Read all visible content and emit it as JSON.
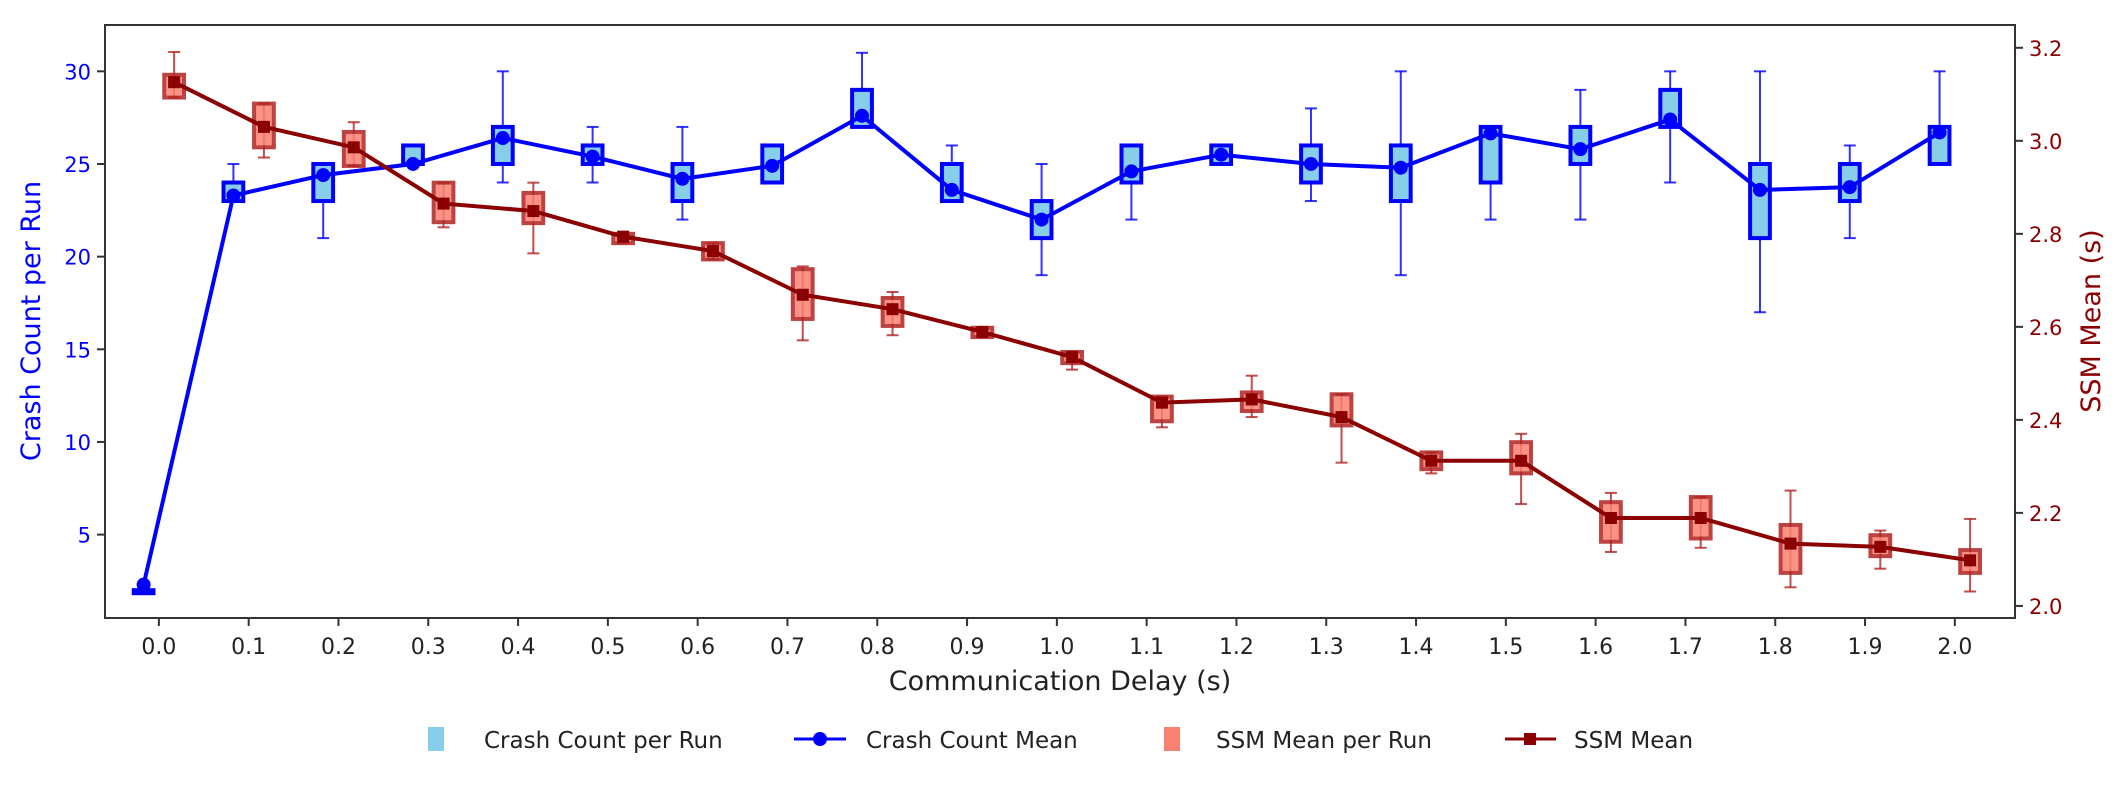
{
  "chart_data": {
    "type": "box+line (dual axis)",
    "xlabel": "Communication Delay (s)",
    "ylabel_left": "Crash Count per Run",
    "ylabel_right": "SSM Mean (s)",
    "x": [
      0.0,
      0.1,
      0.2,
      0.3,
      0.4,
      0.5,
      0.6,
      0.7,
      0.8,
      0.9,
      1.0,
      1.1,
      1.2,
      1.3,
      1.4,
      1.5,
      1.6,
      1.7,
      1.8,
      1.9,
      2.0
    ],
    "x_tick_labels": [
      "0.0",
      "0.1",
      "0.2",
      "0.3",
      "0.4",
      "0.5",
      "0.6",
      "0.7",
      "0.8",
      "0.9",
      "1.0",
      "1.1",
      "1.2",
      "1.3",
      "1.4",
      "1.5",
      "1.6",
      "1.7",
      "1.8",
      "1.9",
      "2.0"
    ],
    "xlim": [
      -0.06,
      2.067
    ],
    "left_axis": {
      "ylim": [
        0.5,
        32.5
      ],
      "ticks": [
        5,
        10,
        15,
        20,
        25,
        30
      ],
      "color": "#0000ff"
    },
    "right_axis": {
      "ylim": [
        1.974,
        3.249
      ],
      "ticks": [
        "2.0",
        "2.2",
        "2.4",
        "2.6",
        "2.8",
        "3.0",
        "3.2"
      ],
      "color": "#8b0000"
    },
    "grid": false,
    "legend_placement": "bottom-center",
    "series": [
      {
        "name": "Crash Count per Run",
        "kind": "box",
        "axis": "left",
        "fill": "#87ceeb",
        "edge": "#0000ff",
        "q1": [
          2,
          23,
          23,
          25,
          25,
          25,
          23,
          24,
          27,
          23,
          21,
          24,
          25,
          24,
          23,
          24,
          25,
          27,
          21,
          23,
          25
        ],
        "q3": [
          2,
          24,
          25,
          26,
          27,
          26,
          25,
          26,
          29,
          25,
          23,
          26,
          26,
          26,
          26,
          27,
          27,
          29,
          25,
          25,
          27
        ],
        "low": [
          2,
          23,
          21,
          25,
          24,
          24,
          22,
          24,
          27,
          23,
          19,
          22,
          25,
          23,
          19,
          22,
          22,
          24,
          17,
          21,
          25
        ],
        "high": [
          2,
          25,
          25,
          26,
          30,
          27,
          27,
          26,
          31,
          26,
          25,
          26,
          26,
          28,
          30,
          27,
          29,
          30,
          30,
          26,
          30
        ]
      },
      {
        "name": "Crash Count Mean",
        "kind": "line",
        "axis": "left",
        "color": "#0000ff",
        "marker": "circle",
        "values": [
          2.3,
          23.3,
          24.4,
          25.0,
          26.4,
          25.4,
          24.2,
          24.9,
          27.6,
          23.6,
          22.0,
          24.6,
          25.5,
          25.0,
          24.8,
          26.65,
          25.8,
          27.4,
          23.6,
          23.75,
          26.7
        ]
      },
      {
        "name": "SSM Mean per Run",
        "kind": "box",
        "axis": "right",
        "fill": "#fa8072",
        "edge": "#b22222",
        "q1": [
          3.093,
          2.986,
          2.946,
          2.825,
          2.823,
          2.78,
          2.745,
          2.617,
          2.602,
          2.578,
          2.522,
          2.397,
          2.419,
          2.388,
          2.294,
          2.285,
          2.138,
          2.145,
          2.071,
          2.107,
          2.071
        ],
        "q3": [
          3.142,
          3.08,
          3.019,
          2.91,
          2.888,
          2.8,
          2.78,
          2.724,
          2.662,
          2.598,
          2.546,
          2.45,
          2.459,
          2.455,
          2.33,
          2.352,
          2.223,
          2.234,
          2.174,
          2.152,
          2.12
        ],
        "low": [
          3.093,
          2.964,
          2.946,
          2.814,
          2.758,
          2.78,
          2.745,
          2.571,
          2.582,
          2.578,
          2.508,
          2.384,
          2.406,
          2.308,
          2.285,
          2.219,
          2.116,
          2.125,
          2.04,
          2.08,
          2.031
        ],
        "high": [
          3.191,
          3.08,
          3.04,
          2.91,
          2.91,
          2.8,
          2.78,
          2.73,
          2.675,
          2.598,
          2.546,
          2.45,
          2.495,
          2.455,
          2.33,
          2.37,
          2.243,
          2.234,
          2.248,
          2.162,
          2.187
        ]
      },
      {
        "name": "SSM Mean",
        "kind": "line",
        "axis": "right",
        "color": "#8b0000",
        "marker": "square",
        "values": [
          3.126,
          3.03,
          2.986,
          2.865,
          2.849,
          2.794,
          2.763,
          2.669,
          2.638,
          2.589,
          2.535,
          2.437,
          2.444,
          2.406,
          2.312,
          2.312,
          2.189,
          2.189,
          2.134,
          2.127,
          2.098
        ]
      }
    ]
  }
}
